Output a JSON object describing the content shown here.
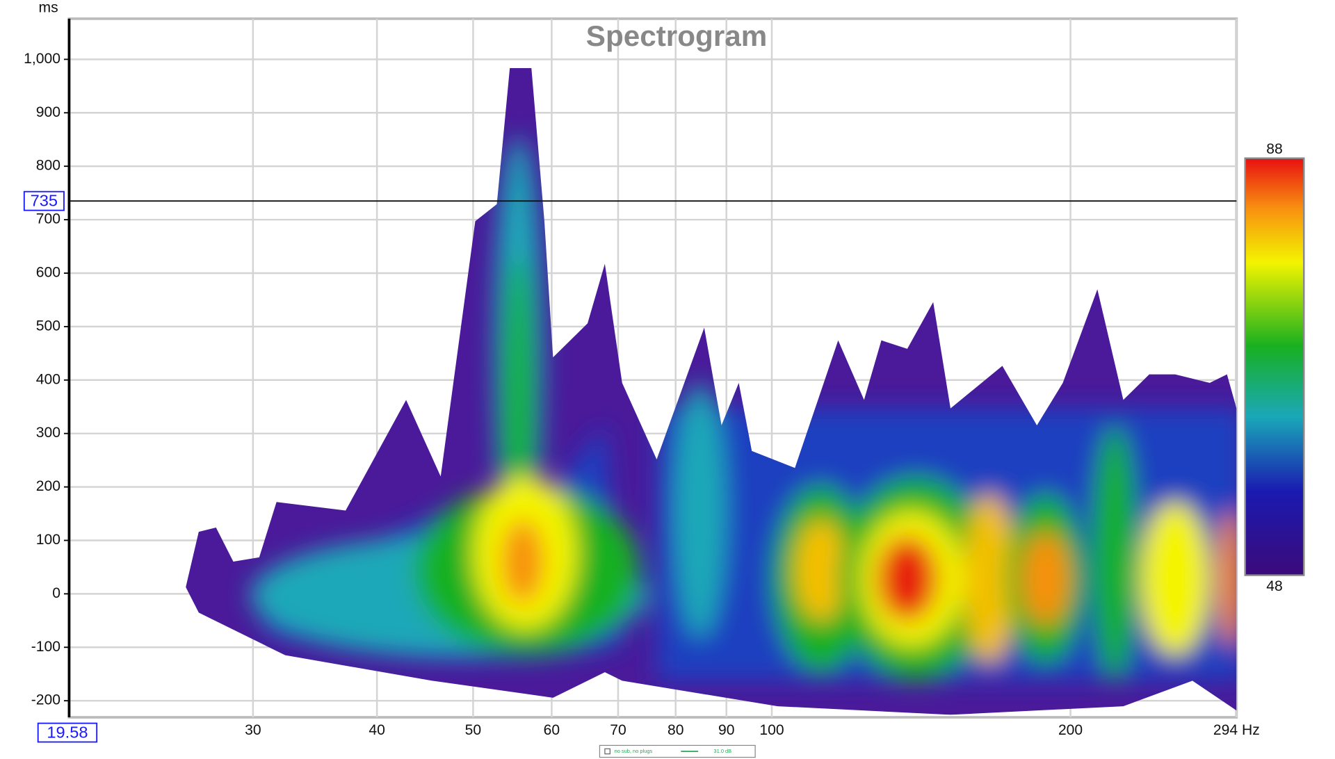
{
  "chart_data": {
    "type": "spectrogram",
    "title": "Spectrogram",
    "y_label": "ms",
    "log_x": true,
    "grid": true,
    "xlim": [
      19.58,
      294
    ],
    "xticks": [
      30,
      40,
      50,
      60,
      70,
      80,
      90,
      100,
      200,
      {
        "value": 294,
        "label": "294 Hz"
      }
    ],
    "ylim": [
      -231,
      1076
    ],
    "yticks": [
      -200,
      -100,
      0,
      100,
      200,
      300,
      400,
      500,
      600,
      700,
      800,
      900,
      {
        "value": 1000,
        "label": "1,000"
      }
    ],
    "cursor": {
      "x": 19.58,
      "y": 735
    },
    "colorbar": {
      "min": 48,
      "max": 88
    },
    "legend": {
      "name": "no sub, no plugs",
      "label": "31.0 dB",
      "color": "#2aa55a"
    }
  }
}
